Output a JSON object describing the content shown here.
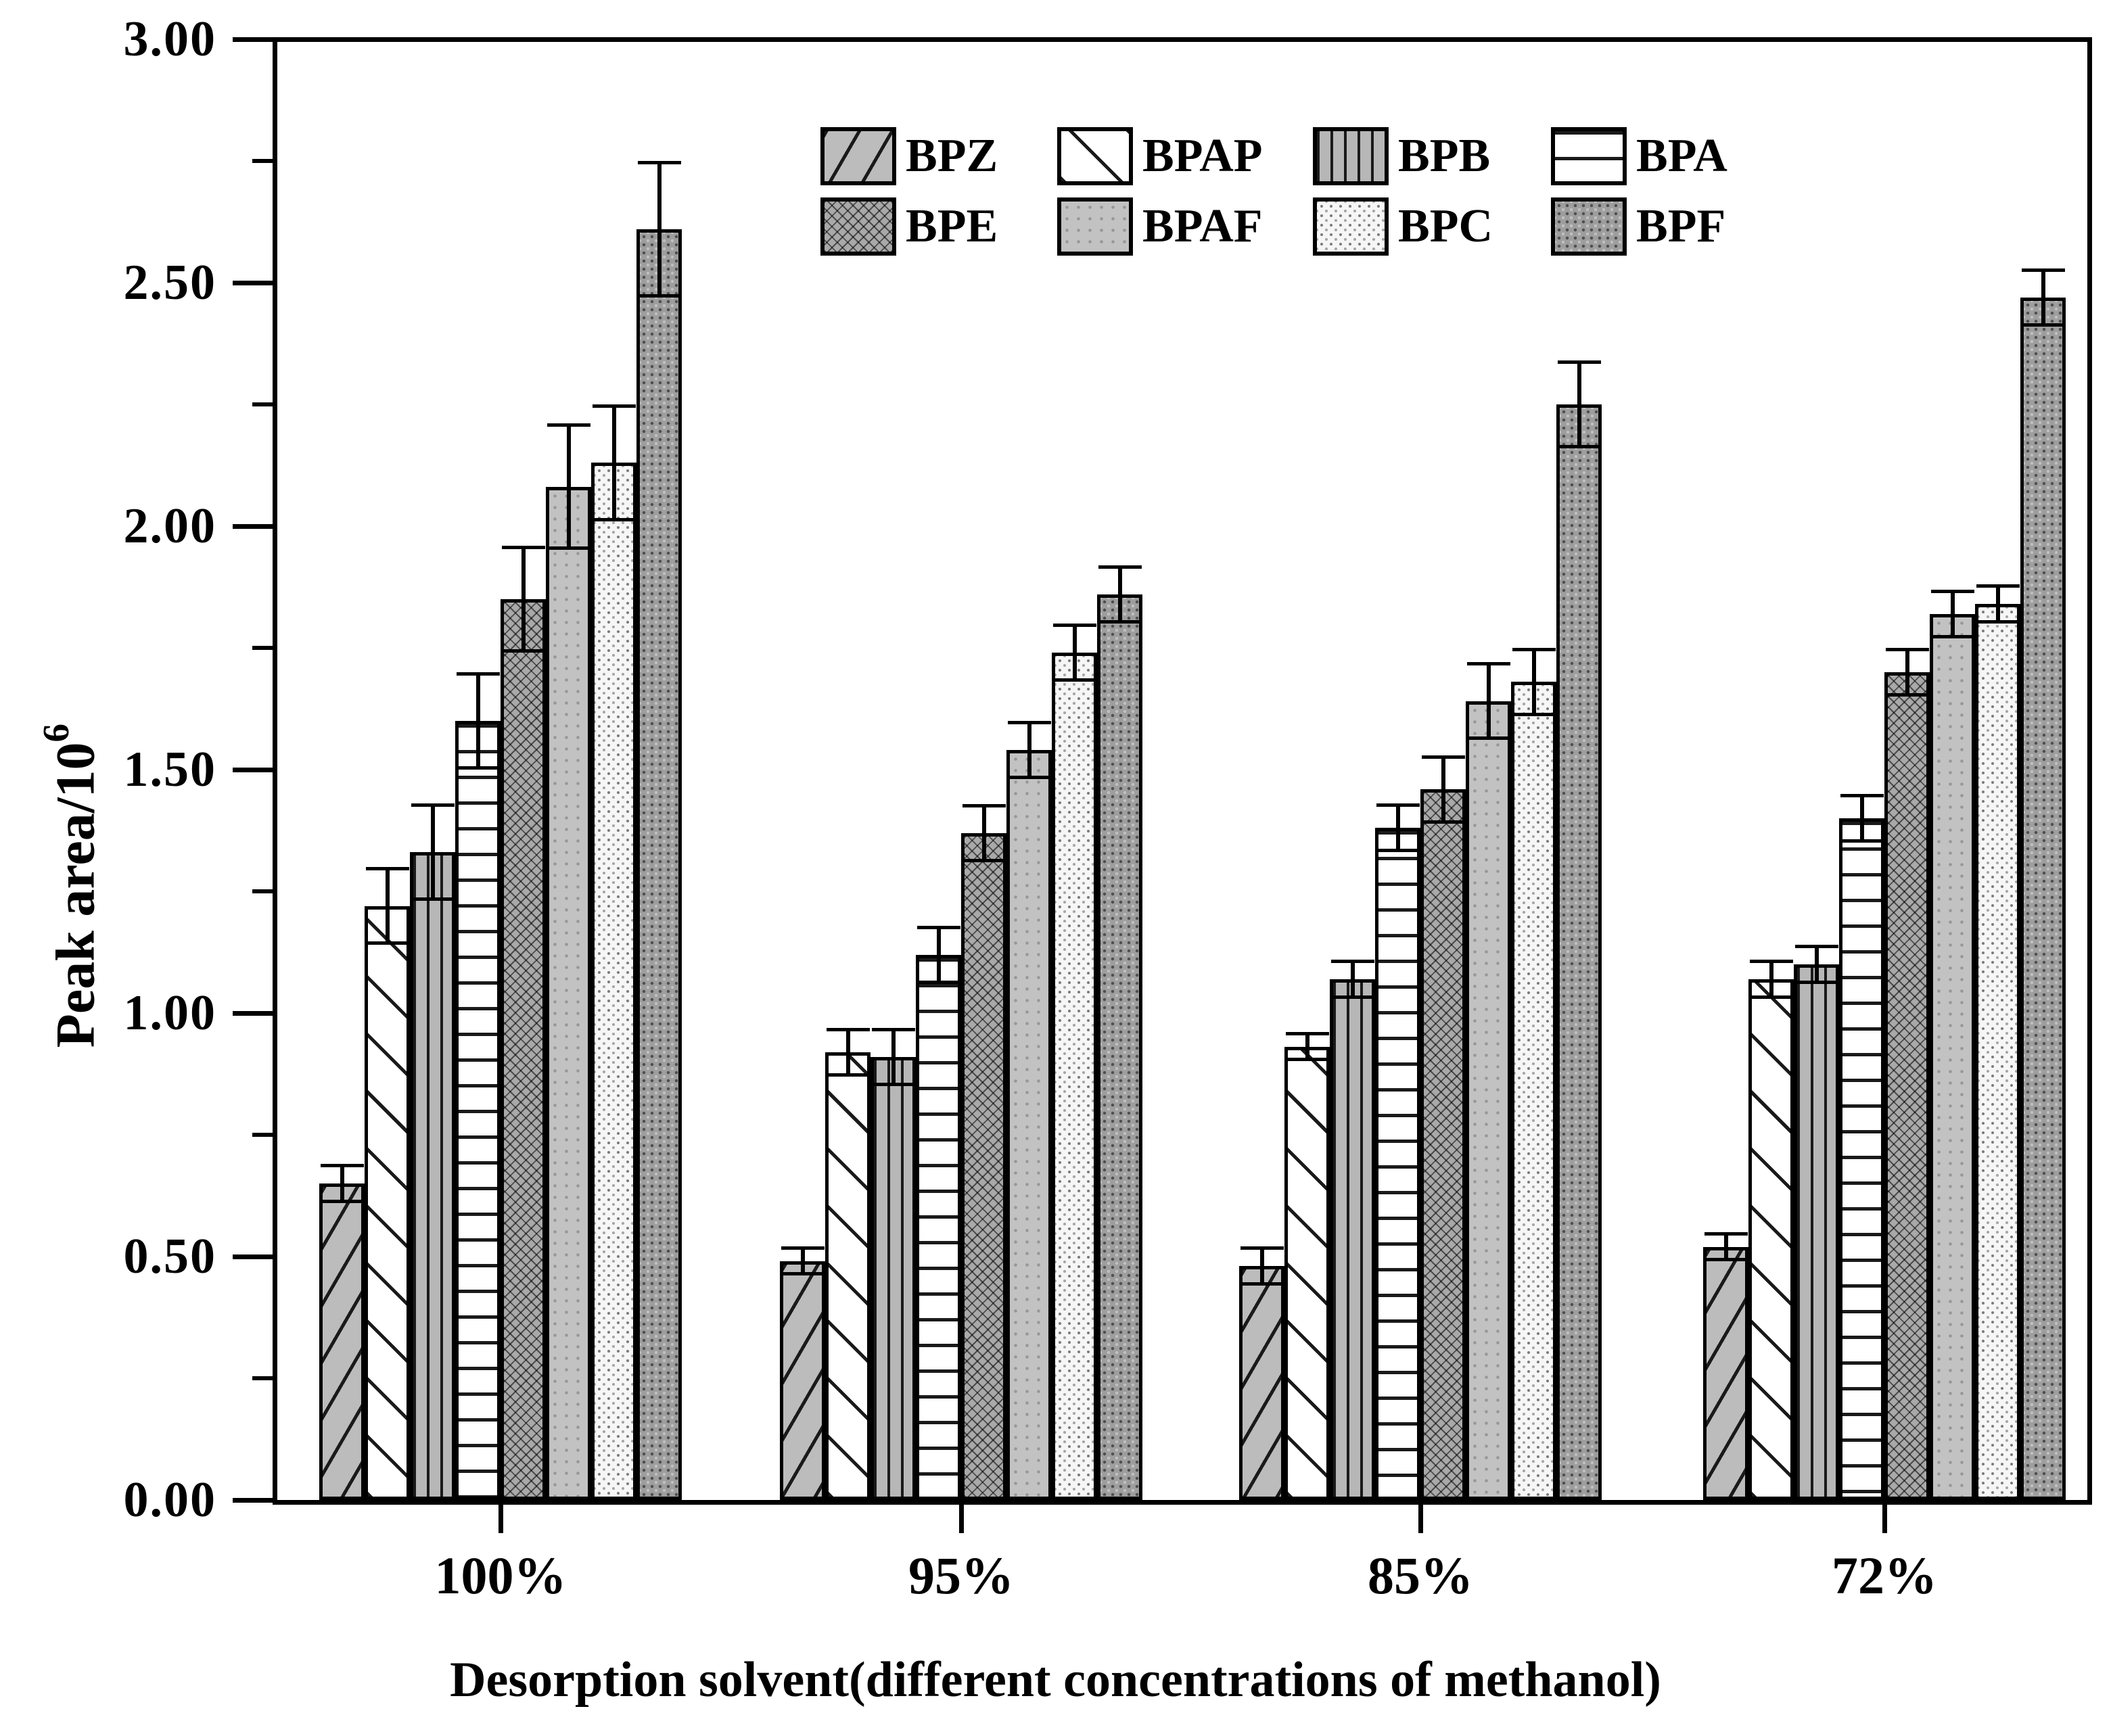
{
  "figure": {
    "background_color": "#ffffff",
    "frame_color": "#000000"
  },
  "y_axis": {
    "title_main": "Peak area/10",
    "title_superscript": "6",
    "tick_labels": [
      "0.00",
      "0.50",
      "1.00",
      "1.50",
      "2.00",
      "2.50",
      "3.00"
    ]
  },
  "x_axis": {
    "title": "Desorption solvent(different concentrations of methanol)",
    "tick_labels": [
      "100%",
      "95%",
      "85%",
      "72%"
    ]
  },
  "legend": {
    "rows": [
      [
        "BPZ",
        "BPAP",
        "BPB",
        "BPA"
      ],
      [
        "BPE",
        "BPAF",
        "BPC",
        "BPF"
      ]
    ]
  },
  "chart_data": {
    "type": "bar",
    "title": "",
    "xlabel": "Desorption solvent(different concentrations of methanol)",
    "ylabel": "Peak area/10^6",
    "categories": [
      "100%",
      "95%",
      "85%",
      "72%"
    ],
    "ylim": [
      0,
      3
    ],
    "ytick_step": 0.5,
    "ytick_minor_step": 0.25,
    "grid": false,
    "legend_position": "top-center-inside",
    "error_bars": true,
    "series": [
      {
        "name": "BPZ",
        "pattern": "diagonal-up-gray",
        "values": [
          0.65,
          0.49,
          0.48,
          0.52
        ],
        "errors": [
          0.04,
          0.03,
          0.04,
          0.03
        ]
      },
      {
        "name": "BPAP",
        "pattern": "diagonal-down-white",
        "values": [
          1.22,
          0.92,
          0.93,
          1.07
        ],
        "errors": [
          0.08,
          0.05,
          0.03,
          0.04
        ]
      },
      {
        "name": "BPB",
        "pattern": "vertical-lines-gray",
        "values": [
          1.33,
          0.91,
          1.07,
          1.1
        ],
        "errors": [
          0.1,
          0.06,
          0.04,
          0.04
        ]
      },
      {
        "name": "BPA",
        "pattern": "horizontal-lines-white",
        "values": [
          1.6,
          1.12,
          1.38,
          1.4
        ],
        "errors": [
          0.1,
          0.06,
          0.05,
          0.05
        ]
      },
      {
        "name": "BPE",
        "pattern": "crosshatch-gray",
        "values": [
          1.85,
          1.37,
          1.46,
          1.7
        ],
        "errors": [
          0.11,
          0.06,
          0.07,
          0.05
        ]
      },
      {
        "name": "BPAF",
        "pattern": "plain-gray-dots",
        "values": [
          2.08,
          1.54,
          1.64,
          1.82
        ],
        "errors": [
          0.13,
          0.06,
          0.08,
          0.05
        ]
      },
      {
        "name": "BPC",
        "pattern": "fine-dots-white",
        "values": [
          2.13,
          1.74,
          1.68,
          1.84
        ],
        "errors": [
          0.12,
          0.06,
          0.07,
          0.04
        ]
      },
      {
        "name": "BPF",
        "pattern": "dense-speckle-gray",
        "values": [
          2.61,
          1.86,
          2.25,
          2.47
        ],
        "errors": [
          0.14,
          0.06,
          0.09,
          0.06
        ]
      }
    ]
  }
}
